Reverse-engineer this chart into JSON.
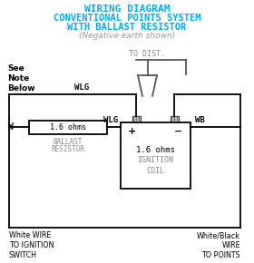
{
  "title_line1": "WIRING DIAGRAM",
  "title_line2": "CONVENTIONAL POINTS SYSTEM",
  "title_line3": "WITH BALLAST RESISTOR",
  "subtitle": "(Negative earth shown)",
  "title_color": "#00aaee",
  "subtitle_color": "#999999",
  "bg_color": "#ffffff",
  "line_color": "#000000",
  "gray_color": "#888888",
  "dark_gray": "#555555",
  "see_note": "See\nNote\nBelow",
  "to_dist": "TO DIST.",
  "ballast_label1": "BALLAST",
  "ballast_label2": "RESISTOR",
  "ballast_ohms": "1.6 ohms",
  "coil_ohms": "1.6 ohms",
  "coil_label": "IGNITION\nCOIL",
  "bottom_left": "White WIRE\nTO IGNITION\nSWITCH",
  "bottom_right": "White/Black\nWIRE\nTO POINTS",
  "wlg1": "WLG",
  "wlg2": "WLG",
  "wb": "WB",
  "w": "W"
}
